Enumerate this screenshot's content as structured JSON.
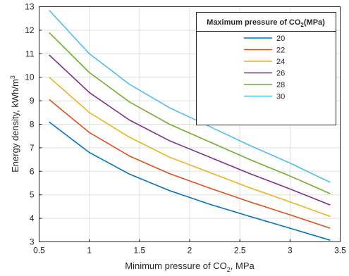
{
  "chart_data": {
    "type": "line",
    "xlabel": "Minimum pressure of CO",
    "xlabel_sub": "2",
    "xlabel_suffix": ", MPa",
    "ylabel": "Energy density, kWh/m",
    "ylabel_sup": "3",
    "xlim": [
      0.5,
      3.5
    ],
    "ylim": [
      3,
      13
    ],
    "xticks": [
      "0.5",
      "1",
      "1.5",
      "2",
      "2.5",
      "3",
      "3.5"
    ],
    "yticks": [
      "3",
      "4",
      "5",
      "6",
      "7",
      "8",
      "9",
      "10",
      "11",
      "12",
      "13"
    ],
    "grid": true,
    "legend": {
      "title": "Maximum pressure of CO",
      "title_sub": "2",
      "title_suffix": "(MPa)",
      "placement": "top-right"
    },
    "x": [
      0.6,
      1.0,
      1.4,
      1.8,
      2.2,
      2.6,
      3.0,
      3.4
    ],
    "series": [
      {
        "name": "20",
        "color": "#0072BD",
        "values": [
          8.1,
          6.8,
          5.88,
          5.18,
          4.6,
          4.08,
          3.58,
          3.07
        ]
      },
      {
        "name": "22",
        "color": "#D95319",
        "values": [
          9.05,
          7.65,
          6.65,
          5.9,
          5.28,
          4.7,
          4.15,
          3.58
        ]
      },
      {
        "name": "24",
        "color": "#EDB120",
        "values": [
          10.0,
          8.5,
          7.45,
          6.6,
          5.95,
          5.3,
          4.7,
          4.08
        ]
      },
      {
        "name": "26",
        "color": "#7E2F8E",
        "values": [
          10.95,
          9.35,
          8.18,
          7.3,
          6.6,
          5.9,
          5.25,
          4.57
        ]
      },
      {
        "name": "28",
        "color": "#77AC30",
        "values": [
          11.9,
          10.2,
          8.95,
          8.0,
          7.25,
          6.5,
          5.8,
          5.05
        ]
      },
      {
        "name": "30",
        "color": "#4DBEEE",
        "values": [
          12.85,
          11.0,
          9.7,
          8.7,
          7.9,
          7.1,
          6.35,
          5.53
        ]
      }
    ]
  }
}
